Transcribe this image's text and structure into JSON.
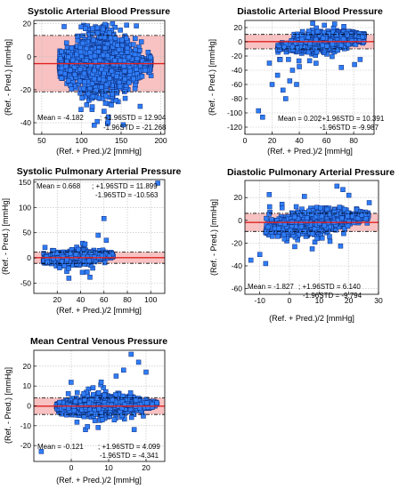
{
  "chart_data": [
    {
      "type": "scatter",
      "title": "Systolic Arterial Blood Pressure",
      "xlabel": "(Ref. + Pred.)/2 [mmHg]",
      "ylabel": "(Ref. - Pred.) [mmHg]",
      "xlim": [
        40,
        205
      ],
      "ylim": [
        -47,
        22
      ],
      "xticks": [
        50,
        100,
        150,
        200
      ],
      "yticks": [
        -40,
        -20,
        0,
        20
      ],
      "grid": true,
      "mean": -4.182,
      "upper": 12.904,
      "lower": -21.268,
      "annotations": [
        "Mean = -4.182",
        "; +1.96STD = 12.904",
        "-1.96STD = -21.268"
      ],
      "cloud": {
        "xmin": 72,
        "xmax": 188,
        "xcenter": 125,
        "ycenter": -4,
        "ysd": 9,
        "ymin": -42,
        "ymax": 20,
        "n": 1700,
        "seed": 11,
        "tilt": 0
      }
    },
    {
      "type": "scatter",
      "title": "Diastolic Arterial Blood Pressure",
      "xlabel": "(Ref. + Pred.)/2 [mmHg]",
      "ylabel": "(Ref. - Pred.) [mmHg]",
      "xlim": [
        0,
        95
      ],
      "ylim": [
        -130,
        30
      ],
      "xticks": [
        0,
        20,
        40,
        60,
        80
      ],
      "yticks": [
        -120,
        -100,
        -80,
        -60,
        -40,
        -20,
        0,
        20
      ],
      "grid": true,
      "mean": 0.202,
      "upper": 10.391,
      "lower": -9.987,
      "annotations": [
        "Mean = 0.202",
        "; +1.96STD = 10.391",
        "-1.96STD = -9.987"
      ],
      "cloud": {
        "xmin": 24,
        "xmax": 88,
        "xcenter": 58,
        "ycenter": 0,
        "ysd": 6,
        "ymin": -70,
        "ymax": 28,
        "n": 1500,
        "seed": 23,
        "tilt": 0.45
      },
      "outliers": [
        [
          10,
          -97
        ],
        [
          13,
          -106
        ],
        [
          20,
          -60
        ],
        [
          24,
          -47
        ],
        [
          28,
          -68
        ],
        [
          30,
          -80
        ],
        [
          33,
          -55
        ],
        [
          18,
          -30
        ],
        [
          35,
          -40
        ],
        [
          26,
          -25
        ],
        [
          38,
          -60
        ],
        [
          40,
          -35
        ]
      ]
    },
    {
      "type": "scatter",
      "title": "Systolic Pulmonary Arterial Pressure",
      "xlabel": "(Ref. + Pred.)/2 [mmHg]",
      "ylabel": "(Ref. - Pred.) [mmHg]",
      "xlim": [
        0,
        112
      ],
      "ylim": [
        -70,
        155
      ],
      "xticks": [
        20,
        40,
        60,
        80,
        100
      ],
      "yticks": [
        -50,
        0,
        50,
        100,
        150
      ],
      "grid": true,
      "mean": 0.668,
      "upper": 11.899,
      "lower": -10.563,
      "annotations": [
        "Mean = 0.668",
        "; +1.96STD = 11.899",
        "-1.96STD = -10.563"
      ],
      "cloud": {
        "xmin": 8,
        "xmax": 68,
        "xcenter": 35,
        "ycenter": 0.5,
        "ysd": 6,
        "ymin": -35,
        "ymax": 40,
        "n": 1400,
        "seed": 37,
        "tilt": 0.25
      },
      "outliers": [
        [
          106,
          148
        ],
        [
          60,
          78
        ],
        [
          55,
          45
        ],
        [
          62,
          35
        ],
        [
          48,
          -38
        ],
        [
          30,
          -40
        ]
      ]
    },
    {
      "type": "scatter",
      "title": "Diastolic Pulmonary Arterial Pressure",
      "xlabel": "(Ref. + Pred.)/2 [mmHg]",
      "ylabel": "(Ref. - Pred.) [mmHg]",
      "xlim": [
        -15,
        30
      ],
      "ylim": [
        -65,
        35
      ],
      "xticks": [
        -10,
        0,
        10,
        20,
        30
      ],
      "yticks": [
        -60,
        -40,
        -20,
        0,
        20
      ],
      "grid": true,
      "mean": -1.827,
      "upper": 6.14,
      "lower": -9.794,
      "annotations": [
        "Mean = -1.827",
        "; +1.96STD = 6.140",
        "-1.96STD = -9.794"
      ],
      "cloud": {
        "xmin": -8,
        "xmax": 27,
        "xcenter": 8,
        "ycenter": -2,
        "ysd": 4.5,
        "ymin": -40,
        "ymax": 30,
        "n": 1500,
        "seed": 51,
        "tilt": 0.9
      },
      "outliers": [
        [
          -13,
          -35
        ],
        [
          -10,
          -30
        ],
        [
          -8,
          -38
        ],
        [
          16,
          30
        ],
        [
          18,
          27
        ],
        [
          20,
          22
        ]
      ]
    },
    {
      "type": "scatter",
      "title": "Mean Central Venous Pressure",
      "xlabel": "(Ref. + Pred.)/2 [mmHg]",
      "ylabel": "(Ref. - Pred.) [mmHg]",
      "xlim": [
        -10,
        25
      ],
      "ylim": [
        -28,
        28
      ],
      "xticks": [
        0,
        10,
        20
      ],
      "yticks": [
        -20,
        -10,
        0,
        10,
        20
      ],
      "grid": true,
      "mean": -0.121,
      "upper": 4.099,
      "lower": -4.341,
      "annotations": [
        "Mean = -0.121",
        "; +1.96STD = 4.099",
        "-1.96STD = -4.341"
      ],
      "cloud": {
        "xmin": -4,
        "xmax": 23,
        "xcenter": 8,
        "ycenter": 0,
        "ysd": 2.4,
        "ymin": -12,
        "ymax": 20,
        "n": 1300,
        "seed": 67,
        "tilt": 0.35
      },
      "outliers": [
        [
          -8,
          -23
        ],
        [
          16,
          26
        ],
        [
          18,
          22
        ],
        [
          14,
          18
        ],
        [
          12,
          15
        ],
        [
          20,
          17
        ],
        [
          8,
          12
        ]
      ]
    }
  ]
}
